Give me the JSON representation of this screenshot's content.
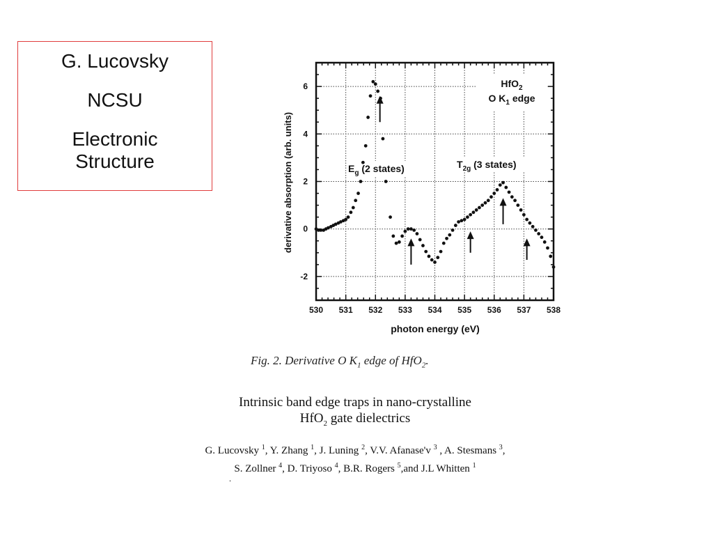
{
  "info_box": {
    "line1": "G. Lucovsky",
    "line2": "NCSU",
    "line3a": "Electronic",
    "line3b": "Structure"
  },
  "chart_data": {
    "type": "scatter",
    "xlabel": "photon energy (eV)",
    "ylabel": "derivative absorption (arb. units)",
    "xlim": [
      530,
      538
    ],
    "ylim": [
      -3,
      7
    ],
    "xticks": [
      "530",
      "531",
      "532",
      "533",
      "534",
      "535",
      "536",
      "537",
      "538"
    ],
    "yticks": [
      "-2",
      "0",
      "2",
      "4",
      "6"
    ],
    "grid": true,
    "legend_title": "HfO2",
    "legend_sub": "O K1 edge",
    "annotation_eg": "Eg (2 states)",
    "annotation_t2g": "T2g (3 states)",
    "arrows_at": [
      532.15,
      533.2,
      535.2,
      536.3,
      537.1
    ],
    "series": [
      {
        "x": [
          530.0,
          530.08,
          530.16,
          530.25,
          530.33,
          530.41,
          530.5,
          530.58,
          530.66,
          530.75,
          530.83,
          530.92,
          531.0,
          531.08,
          531.17,
          531.25,
          531.33,
          531.42,
          531.5,
          531.58,
          531.67,
          531.75,
          531.83,
          531.92,
          532.0,
          532.08,
          532.17,
          532.25,
          532.35,
          532.5,
          532.6,
          532.7,
          532.8,
          532.9,
          533.0,
          533.1,
          533.2,
          533.3,
          533.4,
          533.5,
          533.6,
          533.7,
          533.8,
          533.9,
          534.0,
          534.1,
          534.2,
          534.3,
          534.4,
          534.5,
          534.6,
          534.7,
          534.8,
          534.9,
          535.0,
          535.1,
          535.2,
          535.3,
          535.4,
          535.5,
          535.6,
          535.7,
          535.8,
          535.9,
          536.0,
          536.1,
          536.2,
          536.3,
          536.4,
          536.5,
          536.6,
          536.7,
          536.8,
          536.9,
          537.0,
          537.1,
          537.2,
          537.3,
          537.4,
          537.5,
          537.6,
          537.7,
          537.8,
          537.9,
          538.0
        ],
        "y": [
          0.0,
          -0.05,
          -0.05,
          -0.05,
          0.0,
          0.05,
          0.1,
          0.15,
          0.2,
          0.25,
          0.3,
          0.35,
          0.4,
          0.5,
          0.7,
          0.9,
          1.2,
          1.5,
          2.0,
          2.8,
          3.5,
          4.7,
          5.6,
          6.2,
          6.1,
          5.8,
          5.5,
          3.8,
          2.0,
          0.5,
          -0.3,
          -0.6,
          -0.55,
          -0.3,
          -0.1,
          0.0,
          0.0,
          -0.05,
          -0.2,
          -0.45,
          -0.7,
          -0.95,
          -1.15,
          -1.3,
          -1.4,
          -1.2,
          -0.95,
          -0.6,
          -0.4,
          -0.25,
          -0.05,
          0.15,
          0.3,
          0.35,
          0.4,
          0.5,
          0.6,
          0.7,
          0.8,
          0.9,
          1.0,
          1.1,
          1.2,
          1.35,
          1.5,
          1.65,
          1.85,
          1.95,
          1.75,
          1.55,
          1.35,
          1.2,
          1.0,
          0.8,
          0.6,
          0.4,
          0.25,
          0.1,
          -0.05,
          -0.2,
          -0.35,
          -0.55,
          -0.8,
          -1.15,
          -1.6
        ]
      }
    ]
  },
  "caption": {
    "prefix": "Fig. 2. Derivative O K",
    "sub": "1",
    "middle": " edge of HfO",
    "sub2": "2",
    "suffix": "."
  },
  "paper": {
    "title_line1": "Intrinsic band edge traps in nano-crystalline",
    "title_line2_a": "HfO",
    "title_line2_sub": "2",
    "title_line2_b": " gate dielectrics"
  },
  "authors": [
    {
      "name": "G. Lucovsky",
      "aff": "1"
    },
    {
      "name": "Y. Zhang",
      "aff": "1"
    },
    {
      "name": "J. Luning",
      "aff": "2"
    },
    {
      "name": "V.V. Afanase'v",
      "aff": "3"
    },
    {
      "name": "A. Stesmans",
      "aff": "3"
    },
    {
      "name": "S. Zollner",
      "aff": "4"
    },
    {
      "name": "D. Triyoso",
      "aff": "4"
    },
    {
      "name": "B.R. Rogers",
      "aff": "5"
    },
    {
      "name": "J.L Whitten",
      "aff": "1"
    }
  ],
  "stray_mark": "."
}
